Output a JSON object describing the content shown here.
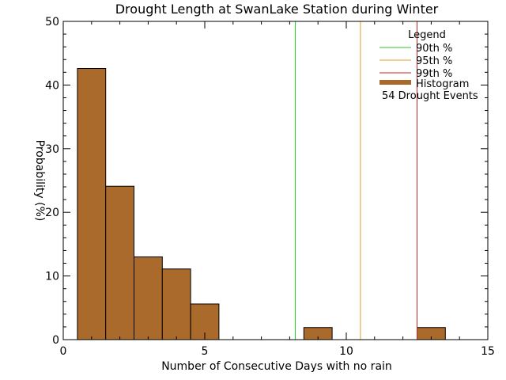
{
  "chart_data": {
    "type": "bar",
    "title": "Drought Length at SwanLake Station during Winter",
    "xlabel": "Number of Consecutive Days with no rain",
    "ylabel": "Probability (%)",
    "xlim": [
      0,
      15
    ],
    "ylim": [
      0,
      50
    ],
    "xticks": [
      "0",
      "5",
      "10",
      "15"
    ],
    "yticks": [
      "0",
      "10",
      "20",
      "30",
      "40",
      "50"
    ],
    "grid": false,
    "bar_color": "#a96a2c",
    "bins": [
      {
        "x_start": 0.5,
        "x_end": 1.5,
        "value": 42.6
      },
      {
        "x_start": 1.5,
        "x_end": 2.5,
        "value": 24.1
      },
      {
        "x_start": 2.5,
        "x_end": 3.5,
        "value": 13.0
      },
      {
        "x_start": 3.5,
        "x_end": 4.5,
        "value": 11.1
      },
      {
        "x_start": 4.5,
        "x_end": 5.5,
        "value": 5.6
      },
      {
        "x_start": 8.5,
        "x_end": 9.5,
        "value": 1.9
      },
      {
        "x_start": 12.5,
        "x_end": 13.5,
        "value": 1.9
      }
    ],
    "percentile_lines": [
      {
        "name": "90th %",
        "x": 8.2,
        "color": "#22cc22"
      },
      {
        "name": "95th %",
        "x": 10.5,
        "color": "#e0a020"
      },
      {
        "name": "99th %",
        "x": 12.5,
        "color": "#cc2222"
      }
    ],
    "legend": {
      "title": "Legend",
      "position": "top-right",
      "histogram_label": "Histogram",
      "events_label": "54 Drought Events"
    }
  }
}
